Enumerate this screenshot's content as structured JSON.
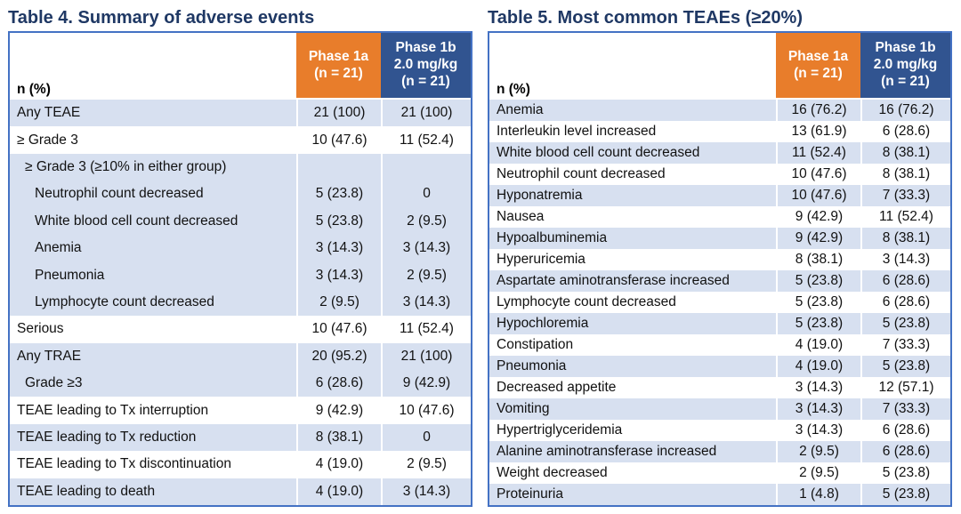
{
  "colors": {
    "title_navy": "#1F3864",
    "header_orange": "#E87D2B",
    "header_blue": "#315490",
    "row_blue": "#D7E0F0",
    "row_white": "#FFFFFF",
    "table_border": "#4472C4",
    "header_text": "#FFFFFF"
  },
  "tables": [
    {
      "title": "Table 4. Summary of adverse events",
      "row_header_label": "n (%)",
      "columns": [
        {
          "name": "phase-1a",
          "lines": [
            "Phase 1a",
            "(n = 21)"
          ],
          "color": "#E87D2B"
        },
        {
          "name": "phase-1b",
          "lines": [
            "Phase 1b",
            "2.0 mg/kg",
            "(n = 21)"
          ],
          "color": "#315490"
        }
      ],
      "rows": [
        {
          "label": "Any TEAE",
          "values": [
            "21 (100)",
            "21 (100)"
          ],
          "shade": "blue",
          "indent": 0
        },
        {
          "label": "≥ Grade 3",
          "values": [
            "10 (47.6)",
            "11 (52.4)"
          ],
          "shade": "white",
          "indent": 0
        },
        {
          "label": "≥ Grade 3 (≥10% in either group)",
          "values": [
            "",
            ""
          ],
          "shade": "blue",
          "indent": 1
        },
        {
          "label": "Neutrophil count decreased",
          "values": [
            "5 (23.8)",
            "0"
          ],
          "shade": "blue",
          "indent": 2
        },
        {
          "label": "White blood cell count decreased",
          "values": [
            "5 (23.8)",
            "2 (9.5)"
          ],
          "shade": "blue",
          "indent": 2
        },
        {
          "label": "Anemia",
          "values": [
            "3 (14.3)",
            "3 (14.3)"
          ],
          "shade": "blue",
          "indent": 2
        },
        {
          "label": "Pneumonia",
          "values": [
            "3 (14.3)",
            "2 (9.5)"
          ],
          "shade": "blue",
          "indent": 2
        },
        {
          "label": "Lymphocyte count decreased",
          "values": [
            "2 (9.5)",
            "3 (14.3)"
          ],
          "shade": "blue",
          "indent": 2
        },
        {
          "label": "Serious",
          "values": [
            "10 (47.6)",
            "11 (52.4)"
          ],
          "shade": "white",
          "indent": 0
        },
        {
          "label": "Any TRAE",
          "values": [
            "20 (95.2)",
            "21 (100)"
          ],
          "shade": "blue",
          "indent": 0
        },
        {
          "label": "Grade ≥3",
          "values": [
            "6 (28.6)",
            "9 (42.9)"
          ],
          "shade": "blue",
          "indent": 1
        },
        {
          "label": "TEAE leading to Tx interruption",
          "values": [
            "9 (42.9)",
            "10 (47.6)"
          ],
          "shade": "white",
          "indent": 0
        },
        {
          "label": "TEAE leading to Tx reduction",
          "values": [
            "8 (38.1)",
            "0"
          ],
          "shade": "blue",
          "indent": 0
        },
        {
          "label": "TEAE leading to Tx discontinuation",
          "values": [
            "4 (19.0)",
            "2 (9.5)"
          ],
          "shade": "white",
          "indent": 0
        },
        {
          "label": "TEAE leading to death",
          "values": [
            "4 (19.0)",
            "3 (14.3)"
          ],
          "shade": "blue",
          "indent": 0
        }
      ]
    },
    {
      "title": "Table 5. Most common TEAEs (≥20%)",
      "row_header_label": "n (%)",
      "columns": [
        {
          "name": "phase-1a",
          "lines": [
            "Phase 1a",
            "(n = 21)"
          ],
          "color": "#E87D2B"
        },
        {
          "name": "phase-1b",
          "lines": [
            "Phase 1b",
            "2.0 mg/kg",
            "(n = 21)"
          ],
          "color": "#315490"
        }
      ],
      "rows": [
        {
          "label": "Anemia",
          "values": [
            "16 (76.2)",
            "16 (76.2)"
          ],
          "shade": "blue",
          "indent": 0
        },
        {
          "label": "Interleukin level increased",
          "values": [
            "13 (61.9)",
            "6 (28.6)"
          ],
          "shade": "white",
          "indent": 0
        },
        {
          "label": "White blood cell count decreased",
          "values": [
            "11 (52.4)",
            "8 (38.1)"
          ],
          "shade": "blue",
          "indent": 0
        },
        {
          "label": "Neutrophil count decreased",
          "values": [
            "10 (47.6)",
            "8 (38.1)"
          ],
          "shade": "white",
          "indent": 0
        },
        {
          "label": "Hyponatremia",
          "values": [
            "10 (47.6)",
            "7 (33.3)"
          ],
          "shade": "blue",
          "indent": 0
        },
        {
          "label": "Nausea",
          "values": [
            "9 (42.9)",
            "11 (52.4)"
          ],
          "shade": "white",
          "indent": 0
        },
        {
          "label": "Hypoalbuminemia",
          "values": [
            "9 (42.9)",
            "8 (38.1)"
          ],
          "shade": "blue",
          "indent": 0
        },
        {
          "label": "Hyperuricemia",
          "values": [
            "8 (38.1)",
            "3 (14.3)"
          ],
          "shade": "white",
          "indent": 0
        },
        {
          "label": "Aspartate aminotransferase increased",
          "values": [
            "5 (23.8)",
            "6 (28.6)"
          ],
          "shade": "blue",
          "indent": 0
        },
        {
          "label": "Lymphocyte count decreased",
          "values": [
            "5 (23.8)",
            "6 (28.6)"
          ],
          "shade": "white",
          "indent": 0
        },
        {
          "label": "Hypochloremia",
          "values": [
            "5 (23.8)",
            "5 (23.8)"
          ],
          "shade": "blue",
          "indent": 0
        },
        {
          "label": "Constipation",
          "values": [
            "4 (19.0)",
            "7 (33.3)"
          ],
          "shade": "white",
          "indent": 0
        },
        {
          "label": "Pneumonia",
          "values": [
            "4 (19.0)",
            "5 (23.8)"
          ],
          "shade": "blue",
          "indent": 0
        },
        {
          "label": "Decreased appetite",
          "values": [
            "3 (14.3)",
            "12 (57.1)"
          ],
          "shade": "white",
          "indent": 0
        },
        {
          "label": "Vomiting",
          "values": [
            "3 (14.3)",
            "7 (33.3)"
          ],
          "shade": "blue",
          "indent": 0
        },
        {
          "label": "Hypertriglyceridemia",
          "values": [
            "3 (14.3)",
            "6 (28.6)"
          ],
          "shade": "white",
          "indent": 0
        },
        {
          "label": "Alanine aminotransferase increased",
          "values": [
            "2 (9.5)",
            "6 (28.6)"
          ],
          "shade": "blue",
          "indent": 0
        },
        {
          "label": "Weight decreased",
          "values": [
            "2 (9.5)",
            "5 (23.8)"
          ],
          "shade": "white",
          "indent": 0
        },
        {
          "label": "Proteinuria",
          "values": [
            "1 (4.8)",
            "5 (23.8)"
          ],
          "shade": "blue",
          "indent": 0
        }
      ]
    }
  ]
}
